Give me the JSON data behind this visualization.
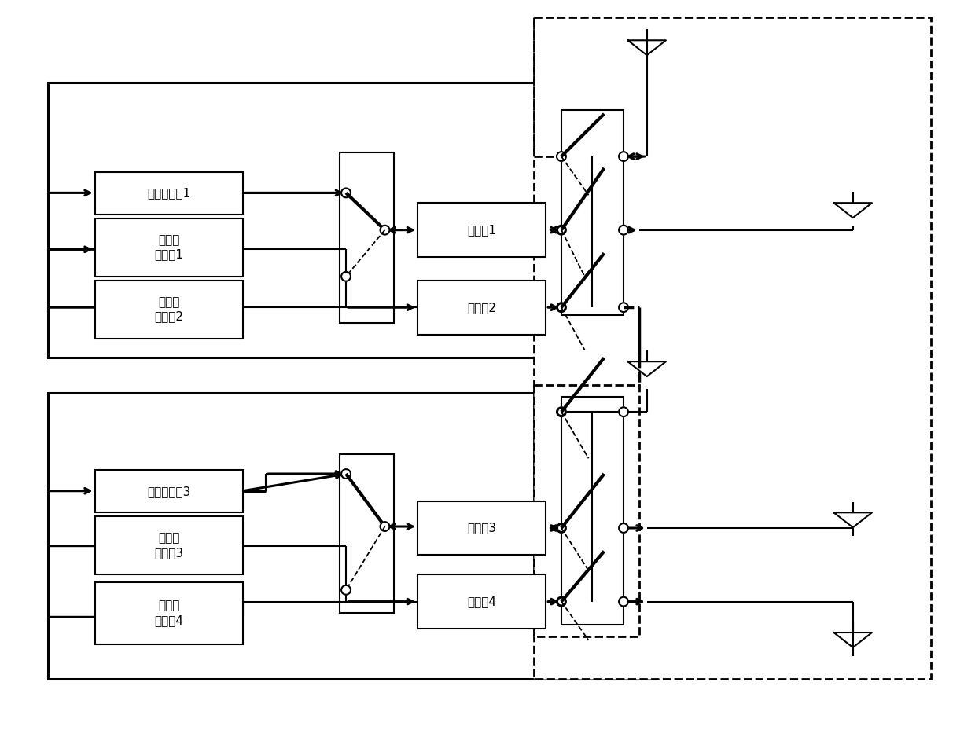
{
  "figsize": [
    12.4,
    9.43
  ],
  "dpi": 100,
  "font_size": 11,
  "labels": {
    "pa1": "功率放大器1",
    "lna1": "低噪声\n放大器1",
    "lna2": "低噪声\n放大器2",
    "f1": "滤波器1",
    "f2": "滤波器2",
    "pa3": "功率放大器3",
    "lna3": "低噪声\n放大器3",
    "lna4": "低噪声\n放大器4",
    "f3": "滤波器3",
    "f4": "滤波器4"
  }
}
